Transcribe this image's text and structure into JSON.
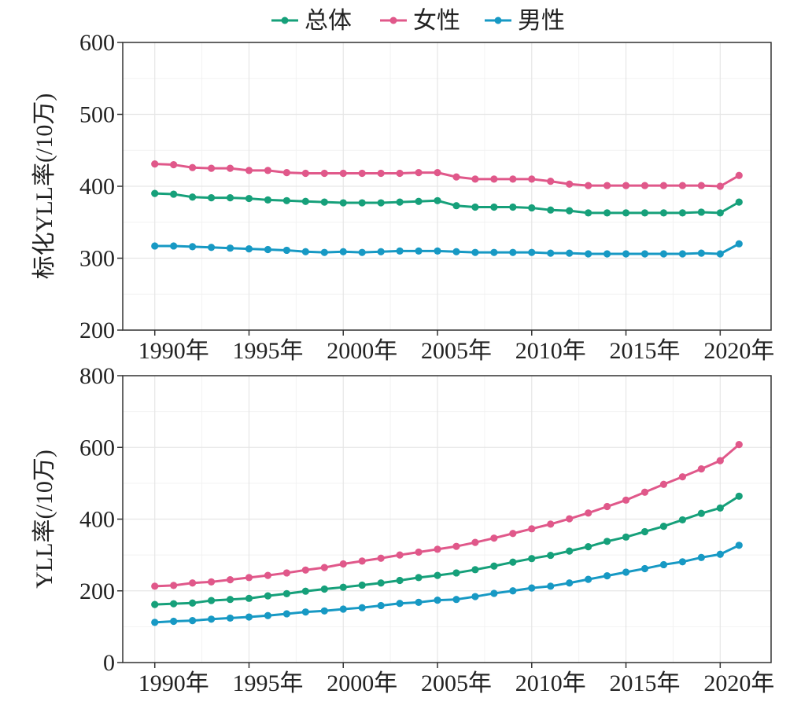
{
  "legend": [
    {
      "label": "总体",
      "color": "#16a07a"
    },
    {
      "label": "女性",
      "color": "#e0588a"
    },
    {
      "label": "男性",
      "color": "#1799c4"
    }
  ],
  "chart_data": [
    {
      "type": "line",
      "ylabel": "标化YLL率(/10万)",
      "xlabel": "",
      "x": [
        1990,
        1991,
        1992,
        1993,
        1994,
        1995,
        1996,
        1997,
        1998,
        1999,
        2000,
        2001,
        2002,
        2003,
        2004,
        2005,
        2006,
        2007,
        2008,
        2009,
        2010,
        2011,
        2012,
        2013,
        2014,
        2015,
        2016,
        2017,
        2018,
        2019,
        2020,
        2021
      ],
      "xticks": [
        1990,
        1995,
        2000,
        2005,
        2010,
        2015,
        2020
      ],
      "xtick_labels": [
        "1990年",
        "1995年",
        "2000年",
        "2005年",
        "2010年",
        "2015年",
        "2020年"
      ],
      "ylim": [
        200,
        600
      ],
      "yticks": [
        200,
        300,
        400,
        500,
        600
      ],
      "grid": true,
      "legend_position": "top",
      "series": [
        {
          "name": "总体",
          "color": "#16a07a",
          "values": [
            390,
            389,
            385,
            384,
            384,
            383,
            381,
            380,
            379,
            378,
            377,
            377,
            377,
            378,
            379,
            380,
            373,
            371,
            371,
            371,
            370,
            367,
            366,
            363,
            363,
            363,
            363,
            363,
            363,
            364,
            363,
            378
          ]
        },
        {
          "name": "女性",
          "color": "#e0588a",
          "values": [
            431,
            430,
            426,
            425,
            425,
            422,
            422,
            419,
            418,
            418,
            418,
            418,
            418,
            418,
            419,
            419,
            413,
            410,
            410,
            410,
            410,
            407,
            403,
            401,
            401,
            401,
            401,
            401,
            401,
            401,
            400,
            415
          ]
        },
        {
          "name": "男性",
          "color": "#1799c4",
          "values": [
            317,
            317,
            316,
            315,
            314,
            313,
            312,
            311,
            309,
            308,
            309,
            308,
            309,
            310,
            310,
            310,
            309,
            308,
            308,
            308,
            308,
            307,
            307,
            306,
            306,
            306,
            306,
            306,
            306,
            307,
            306,
            320
          ]
        }
      ]
    },
    {
      "type": "line",
      "ylabel": "YLL率(/10万)",
      "xlabel": "",
      "x": [
        1990,
        1991,
        1992,
        1993,
        1994,
        1995,
        1996,
        1997,
        1998,
        1999,
        2000,
        2001,
        2002,
        2003,
        2004,
        2005,
        2006,
        2007,
        2008,
        2009,
        2010,
        2011,
        2012,
        2013,
        2014,
        2015,
        2016,
        2017,
        2018,
        2019,
        2020,
        2021
      ],
      "xticks": [
        1990,
        1995,
        2000,
        2005,
        2010,
        2015,
        2020
      ],
      "xtick_labels": [
        "1990年",
        "1995年",
        "2000年",
        "2005年",
        "2010年",
        "2015年",
        "2020年"
      ],
      "ylim": [
        0,
        800
      ],
      "yticks": [
        0,
        200,
        400,
        600,
        800
      ],
      "grid": true,
      "legend_position": "top",
      "series": [
        {
          "name": "总体",
          "color": "#16a07a",
          "values": [
            162,
            164,
            166,
            173,
            176,
            179,
            186,
            192,
            199,
            205,
            210,
            216,
            222,
            229,
            237,
            243,
            250,
            259,
            269,
            280,
            290,
            299,
            311,
            323,
            338,
            350,
            365,
            380,
            398,
            416,
            431,
            464
          ]
        },
        {
          "name": "女性",
          "color": "#e0588a",
          "values": [
            213,
            215,
            222,
            225,
            231,
            237,
            243,
            250,
            258,
            265,
            275,
            283,
            291,
            300,
            308,
            316,
            324,
            335,
            347,
            360,
            373,
            386,
            401,
            417,
            435,
            453,
            475,
            497,
            518,
            540,
            563,
            608
          ]
        },
        {
          "name": "男性",
          "color": "#1799c4",
          "values": [
            112,
            115,
            117,
            121,
            124,
            127,
            131,
            136,
            141,
            144,
            149,
            153,
            159,
            165,
            168,
            174,
            176,
            184,
            193,
            200,
            208,
            213,
            222,
            232,
            242,
            252,
            262,
            273,
            281,
            293,
            302,
            327
          ]
        }
      ]
    }
  ]
}
